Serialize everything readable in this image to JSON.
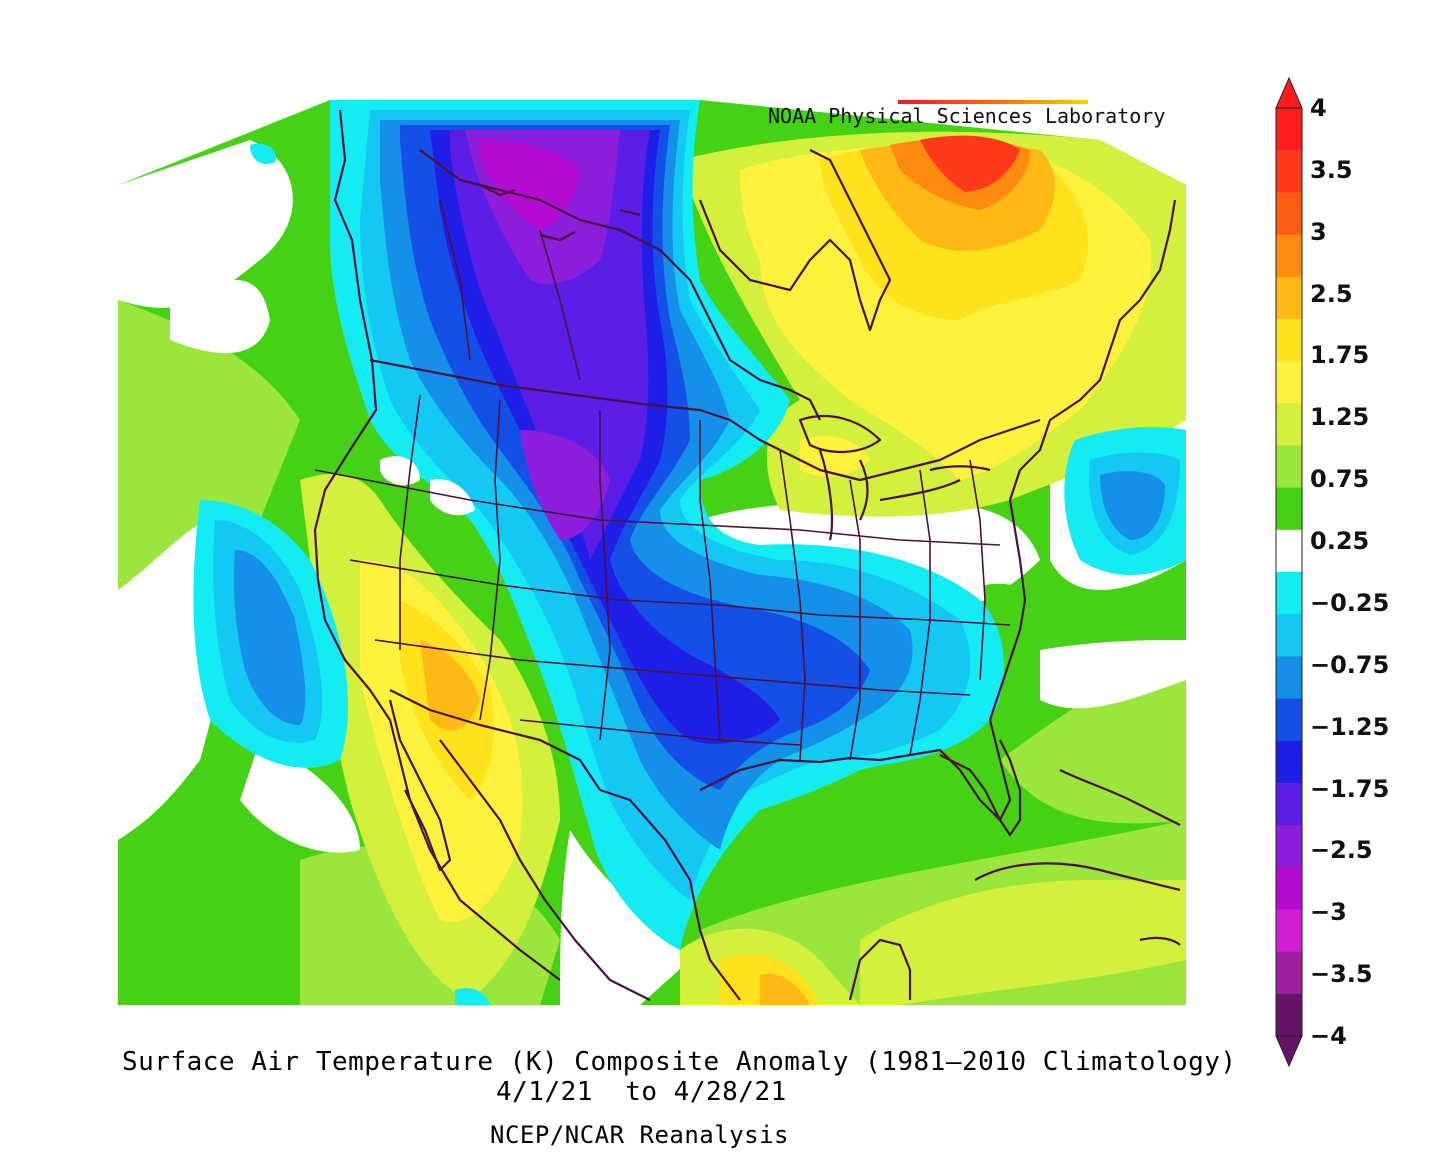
{
  "credit": "NOAA Physical Sciences Laboratory",
  "caption": {
    "line1": "Surface Air Temperature (K) Composite Anomaly (1981–2010 Climatology)",
    "line2": "4/1/21  to 4/28/21",
    "line3": "NCEP/NCAR Reanalysis"
  },
  "colorbar": {
    "labels": [
      "4",
      "3.5",
      "3",
      "2.5",
      "1.75",
      "1.25",
      "0.75",
      "0.25",
      "−0.25",
      "−0.75",
      "−1.25",
      "−1.75",
      "−2.5",
      "−3",
      "−3.5",
      "−4"
    ],
    "colors": [
      "#ff1c1c",
      "#ff3a1a",
      "#ff5a14",
      "#ff8a10",
      "#ffb814",
      "#ffe21c",
      "#fff23c",
      "#d2f03c",
      "#9be63c",
      "#46d214",
      "#ffffff",
      "#14ecf4",
      "#14c8f4",
      "#1490e8",
      "#1450e8",
      "#1e1ee6",
      "#5a1ee6",
      "#8c1edc",
      "#b40ad2",
      "#d21ed2",
      "#a01ea0",
      "#641464"
    ]
  },
  "map_colors": {
    "green": "#46d214",
    "light_green": "#9be63c",
    "yellow_green": "#d2f03c",
    "yellow": "#fff23c",
    "gold": "#ffe21c",
    "orange": "#ff8a10",
    "red": "#ff3a1a",
    "cyan": "#14ecf4",
    "light_blue": "#14c8f4",
    "blue": "#1490e8",
    "royal_blue": "#1450e8",
    "indigo": "#1e1ee6",
    "violet": "#5a1ee6",
    "purple": "#8c1edc",
    "magenta": "#b40ad2",
    "outline": "#4a1040"
  }
}
